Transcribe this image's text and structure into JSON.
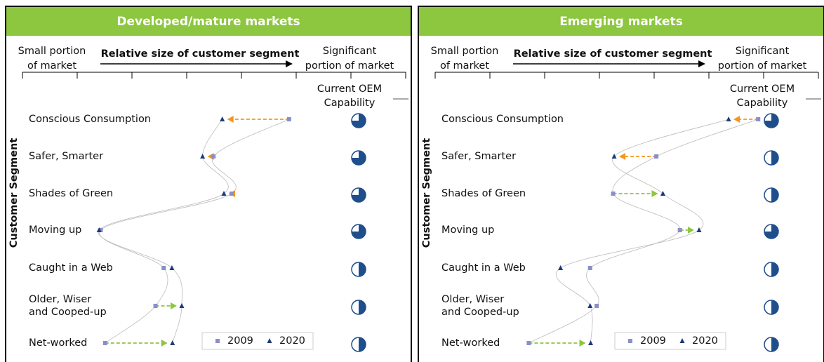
{
  "chart_data": [
    {
      "type": "dot",
      "title": "Developed/mature markets",
      "x_label": "Relative size of customer segment",
      "x_left_label": [
        "Small portion",
        "of market"
      ],
      "x_right_label": [
        "Significant",
        "portion of market"
      ],
      "y_label": "Customer Segment",
      "capability_label": [
        "Current OEM",
        "Capability"
      ],
      "categories": [
        [
          "Conscious Consumption"
        ],
        [
          "Safer, Smarter"
        ],
        [
          "Shades of Green"
        ],
        [
          "Moving up"
        ],
        [
          "Caught in a Web"
        ],
        [
          "Older, Wiser",
          "and Cooped-up"
        ],
        [
          "Net-worked"
        ]
      ],
      "xlim": [
        0,
        7
      ],
      "xticks": [
        0,
        1,
        2,
        3,
        4,
        5,
        6,
        7
      ],
      "series": [
        {
          "name": "2009",
          "color": "#8a8fc9",
          "marker": "square",
          "values": [
            4.87,
            3.49,
            3.82,
            1.43,
            2.58,
            2.43,
            1.51
          ]
        },
        {
          "name": "2020",
          "color": "#1f3a7a",
          "marker": "triangle",
          "values": [
            3.65,
            3.29,
            3.68,
            1.4,
            2.73,
            2.91,
            2.74
          ]
        }
      ],
      "arrows": [
        true,
        true,
        true,
        false,
        false,
        true,
        true
      ],
      "arrow_colors": {
        "decrease": "#f7941d",
        "increase": "#8dc63f"
      },
      "capability": [
        0.75,
        0.75,
        0.75,
        0.75,
        0.5,
        0.5,
        0.5
      ],
      "capability_color": "#1f4e8c"
    },
    {
      "type": "dot",
      "title": "Emerging markets",
      "x_label": "Relative size of customer segment",
      "x_left_label": [
        "Small portion",
        "of market"
      ],
      "x_right_label": [
        "Significant",
        "portion of market"
      ],
      "y_label": "Customer Segment",
      "capability_label": [
        "Current OEM",
        "Capability"
      ],
      "categories": [
        [
          "Conscious Consumption"
        ],
        [
          "Safer, Smarter"
        ],
        [
          "Shades of Green"
        ],
        [
          "Moving up"
        ],
        [
          "Caught in a Web"
        ],
        [
          "Older, Wiser",
          "and Cooped-up"
        ],
        [
          "Net-worked"
        ]
      ],
      "xlim": [
        0,
        7
      ],
      "xticks": [
        0,
        1,
        2,
        3,
        4,
        5,
        6,
        7
      ],
      "series": [
        {
          "name": "2009",
          "color": "#8a8fc9",
          "marker": "square",
          "values": [
            5.9,
            4.04,
            3.25,
            4.47,
            2.83,
            2.95,
            1.71
          ]
        },
        {
          "name": "2020",
          "color": "#1f3a7a",
          "marker": "triangle",
          "values": [
            5.36,
            3.27,
            4.16,
            4.82,
            2.29,
            2.83,
            2.84
          ]
        }
      ],
      "arrows": [
        true,
        true,
        true,
        true,
        false,
        false,
        true
      ],
      "arrow_colors": {
        "decrease": "#f7941d",
        "increase": "#8dc63f"
      },
      "capability": [
        0.75,
        0.5,
        0.5,
        0.75,
        0.5,
        0.5,
        0.5
      ],
      "capability_color": "#1f4e8c"
    }
  ]
}
